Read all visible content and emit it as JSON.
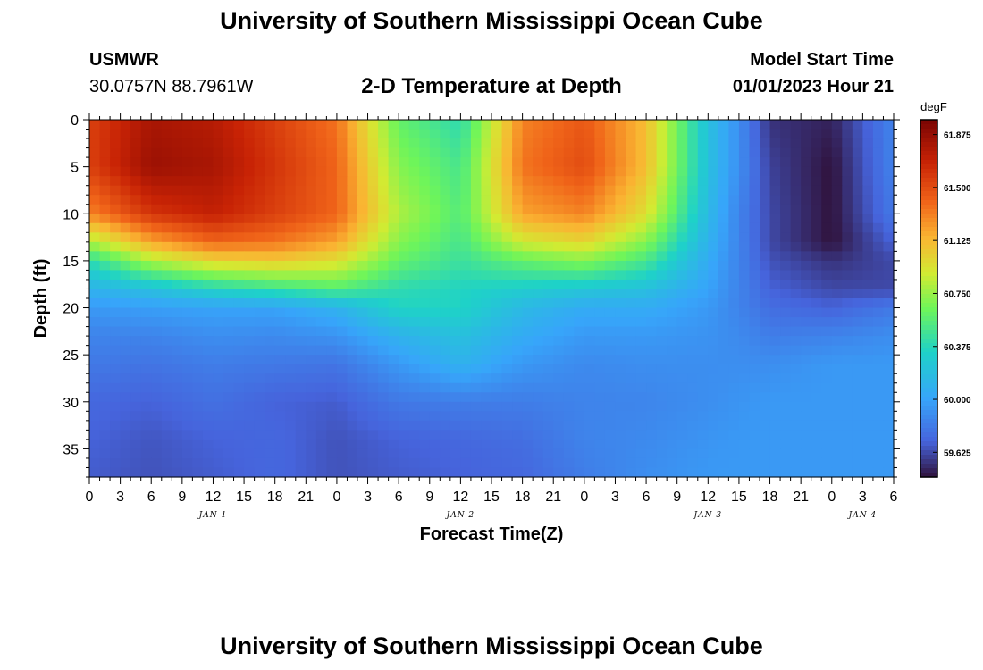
{
  "header": {
    "title": "University of Southern Mississippi Ocean Cube",
    "station": "USMWR",
    "coordinates": "30.0757N  88.7961W",
    "subtitle": "2-D Temperature at Depth",
    "model_start_label": "Model Start Time",
    "model_start_value": "01/01/2023 Hour 21"
  },
  "footer": {
    "title": "University of Southern Mississippi Ocean Cube"
  },
  "chart_data": {
    "type": "heatmap",
    "title": "2-D Temperature at Depth",
    "xlabel": "Forecast Time(Z)",
    "ylabel": "Depth (ft)",
    "x_tick_labels": [
      "0",
      "3",
      "6",
      "9",
      "12",
      "15",
      "18",
      "21",
      "0",
      "3",
      "6",
      "9",
      "12",
      "15",
      "18",
      "21",
      "0",
      "3",
      "6",
      "9",
      "12",
      "15",
      "18",
      "21",
      "0",
      "3",
      "6"
    ],
    "x_range_hours": [
      0,
      78
    ],
    "date_labels": [
      {
        "label": "JAN 1",
        "hour": 12
      },
      {
        "label": "JAN 2",
        "hour": 36
      },
      {
        "label": "JAN 3",
        "hour": 60
      },
      {
        "label": "JAN 4",
        "hour": 75
      }
    ],
    "y_range_ft": [
      0,
      38
    ],
    "y_ticks": [
      0,
      5,
      10,
      15,
      20,
      25,
      30,
      35
    ],
    "colorbar": {
      "unit": "degF",
      "ticks": [
        "61.875",
        "61.500",
        "61.125",
        "60.750",
        "60.375",
        "60.000",
        "59.625"
      ],
      "tick_values": [
        61.875,
        61.5,
        61.125,
        60.75,
        60.375,
        60.0,
        59.625
      ],
      "range": [
        59.45,
        61.98
      ]
    },
    "time_hours": [
      0,
      6,
      12,
      18,
      24,
      30,
      36,
      42,
      48,
      54,
      60,
      63,
      66,
      72,
      78
    ],
    "depth_ft": [
      0,
      5,
      10,
      13,
      15,
      18,
      20,
      23,
      26,
      30,
      34,
      38
    ],
    "values_degF": [
      [
        61.55,
        61.8,
        61.75,
        61.55,
        61.35,
        60.6,
        60.4,
        61.3,
        61.45,
        61.1,
        60.2,
        59.9,
        59.55,
        59.5,
        59.85
      ],
      [
        61.55,
        61.85,
        61.8,
        61.6,
        61.4,
        60.7,
        60.5,
        61.35,
        61.5,
        61.1,
        60.2,
        59.9,
        59.6,
        59.45,
        59.85
      ],
      [
        61.3,
        61.6,
        61.7,
        61.55,
        61.4,
        60.8,
        60.55,
        61.2,
        61.3,
        60.95,
        60.15,
        59.85,
        59.62,
        59.45,
        59.8
      ],
      [
        60.8,
        61.2,
        61.4,
        61.35,
        61.2,
        60.7,
        60.5,
        60.9,
        61.0,
        60.7,
        60.1,
        59.85,
        59.62,
        59.45,
        59.7
      ],
      [
        60.4,
        60.8,
        61.0,
        61.05,
        60.95,
        60.6,
        60.45,
        60.6,
        60.7,
        60.5,
        60.05,
        59.85,
        59.65,
        59.55,
        59.62
      ],
      [
        60.1,
        60.2,
        60.35,
        60.45,
        60.55,
        60.4,
        60.35,
        60.3,
        60.25,
        60.2,
        60.0,
        59.85,
        59.7,
        59.62,
        59.62
      ],
      [
        59.95,
        59.98,
        60.0,
        60.0,
        60.1,
        60.35,
        60.35,
        60.15,
        60.05,
        60.05,
        59.95,
        59.85,
        59.75,
        59.7,
        59.8
      ],
      [
        59.85,
        59.85,
        59.9,
        59.88,
        59.92,
        60.1,
        60.2,
        60.05,
        59.95,
        59.95,
        59.92,
        59.88,
        59.82,
        59.85,
        59.9
      ],
      [
        59.8,
        59.78,
        59.82,
        59.8,
        59.78,
        59.95,
        60.1,
        59.95,
        59.88,
        59.9,
        59.9,
        59.9,
        59.9,
        59.95,
        59.95
      ],
      [
        59.72,
        59.7,
        59.76,
        59.7,
        59.68,
        59.8,
        59.82,
        59.82,
        59.85,
        59.86,
        59.9,
        59.93,
        59.95,
        59.95,
        59.95
      ],
      [
        59.7,
        59.66,
        59.7,
        59.72,
        59.65,
        59.7,
        59.72,
        59.75,
        59.85,
        59.88,
        59.93,
        59.95,
        59.95,
        59.95,
        59.95
      ],
      [
        59.68,
        59.65,
        59.68,
        59.72,
        59.65,
        59.68,
        59.7,
        59.72,
        59.82,
        59.9,
        59.95,
        59.95,
        59.95,
        59.95,
        59.95
      ]
    ]
  }
}
